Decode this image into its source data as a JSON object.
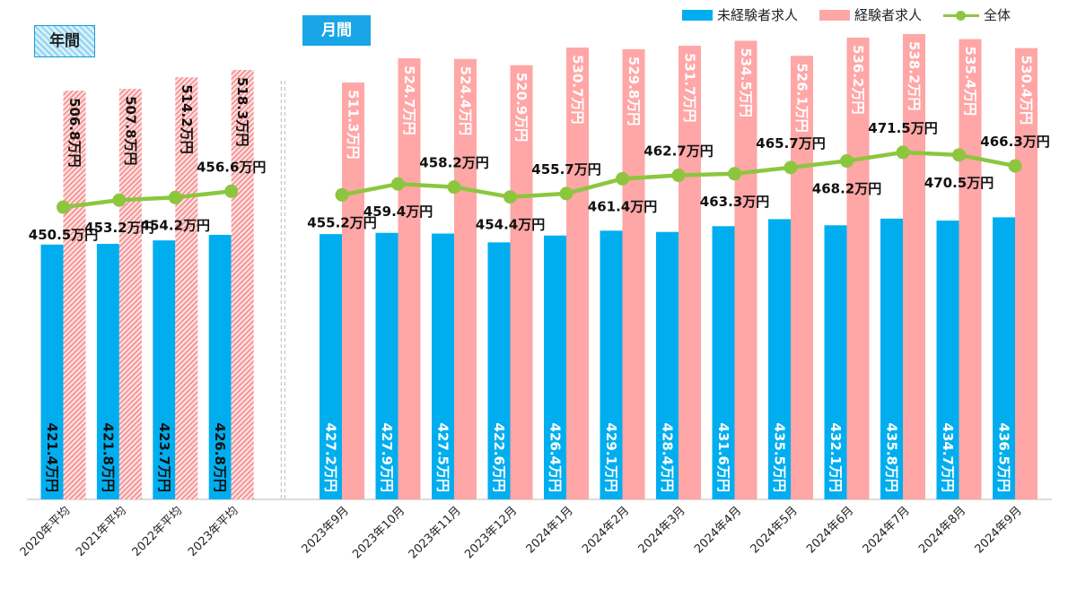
{
  "header": {
    "annual_label": "年間",
    "monthly_label": "月間"
  },
  "legend": {
    "inexperienced": "未経験者求人",
    "experienced": "経験者求人",
    "overall": "全体"
  },
  "colors": {
    "inexperienced": "#00aeef",
    "experienced": "#ffa6a6",
    "overall": "#8cc63f"
  },
  "chart_data": {
    "type": "bar",
    "unit_suffix": "万円",
    "categories": [
      "2020年平均",
      "2021年平均",
      "2022年平均",
      "2023年平均",
      "2023年9月",
      "2023年10月",
      "2023年11月",
      "2023年12月",
      "2024年1月",
      "2024年2月",
      "2024年3月",
      "2024年4月",
      "2024年5月",
      "2024年6月",
      "2024年7月",
      "2024年8月",
      "2024年9月"
    ],
    "annual_count": 4,
    "series": [
      {
        "name": "未経験者求人",
        "type": "bar",
        "values": [
          421.4,
          421.8,
          423.7,
          426.8,
          427.2,
          427.9,
          427.5,
          422.6,
          426.4,
          429.1,
          428.4,
          431.6,
          435.5,
          432.1,
          435.8,
          434.7,
          436.5
        ]
      },
      {
        "name": "経験者求人",
        "type": "bar",
        "values": [
          506.8,
          507.8,
          514.2,
          518.3,
          511.3,
          524.7,
          524.4,
          520.9,
          530.7,
          529.8,
          531.7,
          534.5,
          526.1,
          536.2,
          538.2,
          535.4,
          530.4
        ]
      },
      {
        "name": "全体",
        "type": "line",
        "values": [
          450.5,
          453.2,
          454.2,
          456.6,
          455.2,
          459.4,
          458.2,
          454.4,
          455.7,
          461.4,
          462.7,
          463.3,
          465.7,
          468.2,
          471.5,
          470.5,
          466.3
        ]
      }
    ],
    "title": "",
    "xlabel": "",
    "ylabel": "",
    "grid": false,
    "legend_position": "top-right"
  }
}
